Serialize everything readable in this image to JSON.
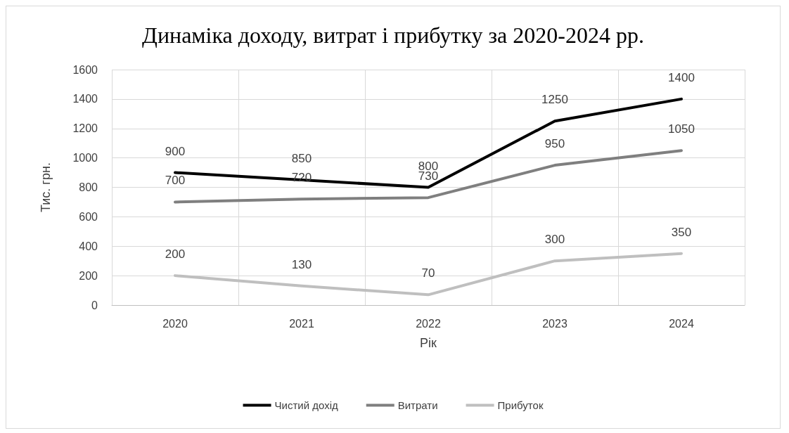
{
  "chart_data": {
    "type": "line",
    "title": "Динаміка доходу, витрат і прибутку за 2020-2024 рр.",
    "xlabel": "Рік",
    "ylabel": "Тис. грн.",
    "categories": [
      "2020",
      "2021",
      "2022",
      "2023",
      "2024"
    ],
    "series": [
      {
        "name": "Чистий дохід",
        "color": "#000000",
        "values": [
          900,
          850,
          800,
          1250,
          1400
        ]
      },
      {
        "name": "Витрати",
        "color": "#7f7f7f",
        "values": [
          700,
          720,
          730,
          950,
          1050
        ]
      },
      {
        "name": "Прибуток",
        "color": "#bfbfbf",
        "values": [
          200,
          130,
          70,
          300,
          350
        ]
      }
    ],
    "ylim": [
      0,
      1600
    ],
    "yticks": [
      0,
      200,
      400,
      600,
      800,
      1000,
      1200,
      1400,
      1600
    ],
    "grid": true,
    "legend": "bottom",
    "data_labels": true,
    "marker": "none",
    "line_style": "solid"
  }
}
